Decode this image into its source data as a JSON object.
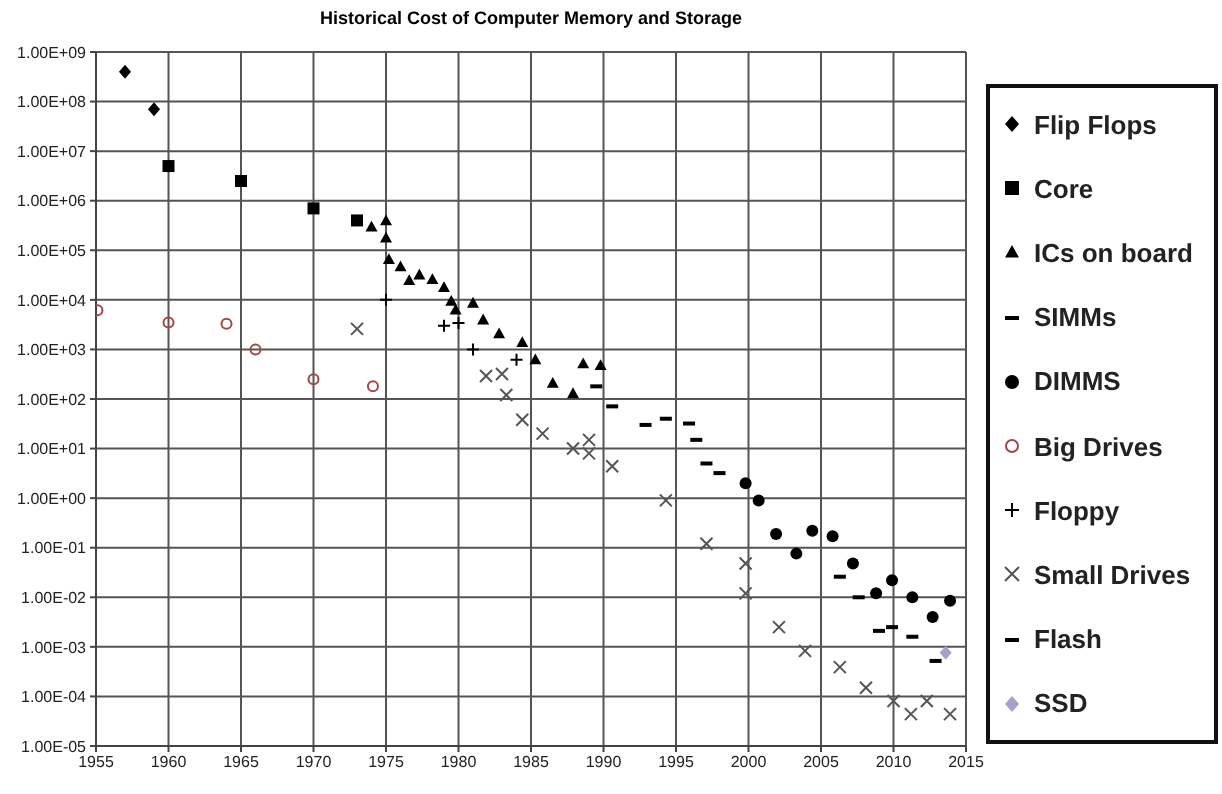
{
  "chart_data": {
    "type": "scatter",
    "title": "Historical Cost of Computer Memory and Storage",
    "log": "y",
    "grid": true,
    "legend": "right",
    "xlim": [
      1955,
      2015
    ],
    "xticks": [
      1955,
      1960,
      1965,
      1970,
      1975,
      1980,
      1985,
      1990,
      1995,
      2000,
      2005,
      2010,
      2015
    ],
    "ylim": [
      1e-05,
      1000000000.0
    ],
    "yticks": [
      {
        "value": 1e-05,
        "label": "1.00E-05"
      },
      {
        "value": 0.0001,
        "label": "1.00E-04"
      },
      {
        "value": 0.001,
        "label": "1.00E-03"
      },
      {
        "value": 0.01,
        "label": "1.00E-02"
      },
      {
        "value": 0.1,
        "label": "1.00E-01"
      },
      {
        "value": 1,
        "label": "1.00E+00"
      },
      {
        "value": 10,
        "label": "1.00E+01"
      },
      {
        "value": 100,
        "label": "1.00E+02"
      },
      {
        "value": 1000,
        "label": "1.00E+03"
      },
      {
        "value": 10000.0,
        "label": "1.00E+04"
      },
      {
        "value": 100000.0,
        "label": "1.00E+05"
      },
      {
        "value": 1000000.0,
        "label": "1.00E+06"
      },
      {
        "value": 10000000.0,
        "label": "1.00E+07"
      },
      {
        "value": 100000000.0,
        "label": "1.00E+08"
      },
      {
        "value": 1000000000.0,
        "label": "1.00E+09"
      }
    ],
    "series": [
      {
        "name": "Flip Flops",
        "color": "#000000",
        "marker": "diamond",
        "x": [
          1957,
          1959
        ],
        "values": [
          400000000.0,
          70000000.0
        ]
      },
      {
        "name": "Core",
        "color": "#000000",
        "marker": "square",
        "x": [
          1960,
          1965,
          1970,
          1973
        ],
        "values": [
          5000000.0,
          2500000.0,
          700000.0,
          400000.0
        ]
      },
      {
        "name": "ICs on board",
        "color": "#000000",
        "marker": "triangle",
        "x": [
          1974,
          1975,
          1975,
          1975.2,
          1976,
          1976.6,
          1977.3,
          1978.2,
          1979,
          1979.5,
          1979.8,
          1981,
          1981.7,
          1982.8,
          1984.4,
          1985.3,
          1986.5,
          1987.9,
          1988.6,
          1989.8
        ],
        "values": [
          300000.0,
          400000.0,
          180000.0,
          66000.0,
          47000.0,
          25000.0,
          32000.0,
          26000.0,
          18000.0,
          9500.0,
          6300.0,
          8700.0,
          4000.0,
          2100.0,
          1400.0,
          630,
          210,
          130,
          520,
          480
        ]
      },
      {
        "name": "SIMMs",
        "color": "#000000",
        "x": [
          1989.5,
          1990.6,
          1992.9,
          1994.3,
          1995.9,
          1996.4,
          1997.1,
          1998
        ],
        "values": [
          180,
          71,
          30,
          40,
          32,
          15,
          5,
          3.2
        ]
      },
      {
        "name": "DIMMS",
        "color": "#000000",
        "marker": "circle",
        "x": [
          1999.8,
          2000.7,
          2001.9,
          2003.3,
          2004.4,
          2005.8,
          2007.2,
          2008.8,
          2009.9,
          2011.3,
          2012.7,
          2013.9
        ],
        "values": [
          2,
          0.9,
          0.19,
          0.076,
          0.22,
          0.17,
          0.048,
          0.012,
          0.022,
          0.01,
          0.004,
          0.0085
        ]
      },
      {
        "name": "Big Drives",
        "color": "#a04848",
        "marker": "circle-open",
        "x": [
          1955.1,
          1960,
          1964,
          1966,
          1970,
          1974.1
        ],
        "values": [
          6200,
          3500,
          3300,
          1000,
          250,
          180
        ]
      },
      {
        "name": "Floppy",
        "color": "#000000",
        "marker": "plus",
        "x": [
          1975,
          1979,
          1980,
          1981,
          1984
        ],
        "values": [
          10000.0,
          3000,
          3400,
          1000,
          620
        ]
      },
      {
        "name": "Small Drives",
        "color": "#555555",
        "marker": "cross",
        "x": [
          1973,
          1981.9,
          1983,
          1983.3,
          1984.4,
          1985.8,
          1987.9,
          1989,
          1989,
          1990.6,
          1994.3,
          1997.1,
          1999.8,
          1999.8,
          2002.1,
          2003.9,
          2006.3,
          2008.1,
          2010,
          2011.2,
          2012.3,
          2013.9
        ],
        "values": [
          2600,
          290,
          320,
          120,
          38,
          20,
          10,
          15,
          8,
          4.4,
          0.9,
          0.12,
          0.048,
          0.012,
          0.0025,
          0.00083,
          0.00039,
          0.00015,
          8.1e-05,
          4.4e-05,
          8.1e-05,
          4.4e-05
        ]
      },
      {
        "name": "Flash",
        "color": "#000000",
        "x": [
          2006.3,
          2007.6,
          2009,
          2009.9,
          2011.3,
          2012.9
        ],
        "values": [
          0.026,
          0.01,
          0.0021,
          0.0025,
          0.0016,
          0.00052
        ]
      },
      {
        "name": "SSD",
        "color": "#a8a0c8",
        "marker": "diamond",
        "x": [
          2013.6
        ],
        "values": [
          0.00076
        ]
      }
    ]
  }
}
